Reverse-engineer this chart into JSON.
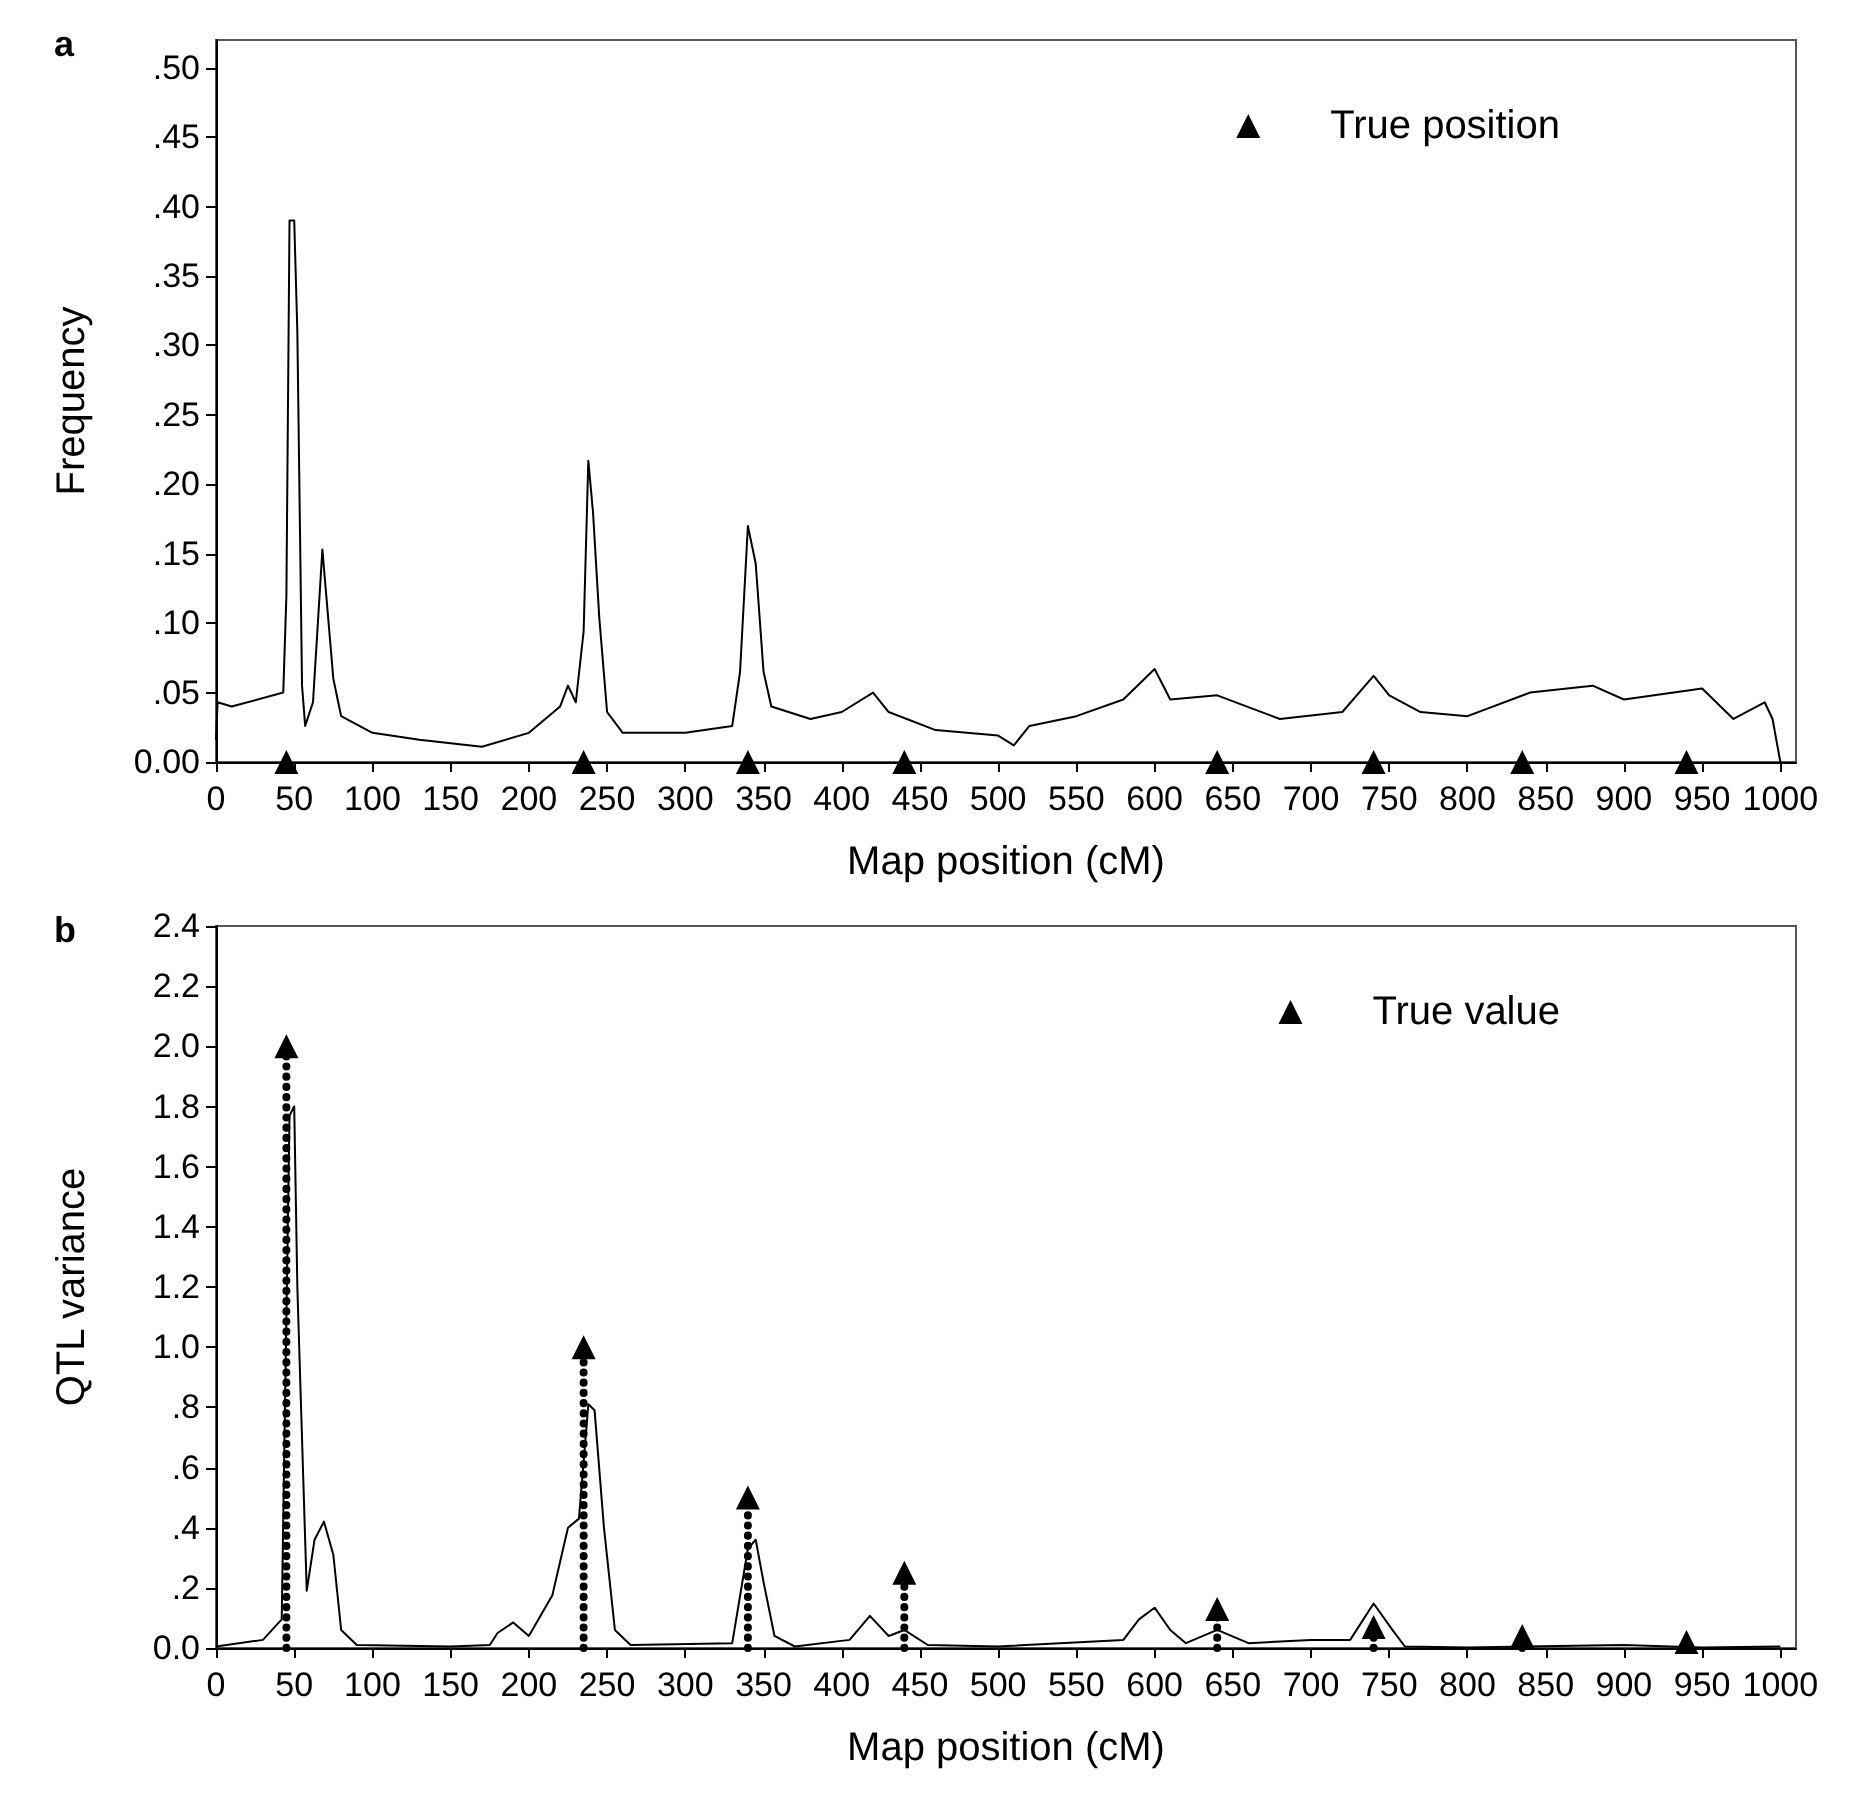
{
  "chart_data": [
    {
      "type": "line",
      "title": "a",
      "xlabel": "Map position (cM)",
      "ylabel": "Frequency",
      "legend": "top right",
      "xlim": [
        0,
        1010
      ],
      "xticks": [
        0,
        50,
        100,
        150,
        200,
        250,
        300,
        350,
        400,
        450,
        500,
        550,
        600,
        650,
        700,
        750,
        800,
        850,
        900,
        950,
        1000
      ],
      "ylim": [
        0,
        0.52
      ],
      "yticks": [
        {
          "value": 0,
          "label": "0.00"
        },
        {
          "value": 0.05,
          "label": ".05"
        },
        {
          "value": 0.1,
          "label": ".10"
        },
        {
          "value": 0.15,
          "label": ".15"
        },
        {
          "value": 0.2,
          "label": ".20"
        },
        {
          "value": 0.25,
          "label": ".25"
        },
        {
          "value": 0.3,
          "label": ".30"
        },
        {
          "value": 0.35,
          "label": ".35"
        },
        {
          "value": 0.4,
          "label": ".40"
        },
        {
          "value": 0.45,
          "label": ".45"
        },
        {
          "value": 0.5,
          "label": ".50"
        }
      ],
      "series": [
        {
          "color": "#000000",
          "marker": "none",
          "x": [
            0,
            1,
            10,
            43,
            45,
            47,
            50,
            52,
            55,
            57,
            62,
            68,
            75,
            80,
            100,
            130,
            170,
            200,
            220,
            225,
            230,
            235,
            238,
            241,
            245,
            250,
            260,
            300,
            330,
            335,
            340,
            345,
            350,
            355,
            380,
            400,
            420,
            430,
            460,
            500,
            510,
            520,
            550,
            580,
            600,
            610,
            640,
            680,
            720,
            740,
            750,
            770,
            800,
            840,
            880,
            900,
            950,
            970,
            990,
            995,
            1000
          ],
          "values": [
            0.016,
            0.043,
            0.04,
            0.05,
            0.12,
            0.39,
            0.39,
            0.31,
            0.055,
            0.026,
            0.043,
            0.153,
            0.06,
            0.033,
            0.021,
            0.016,
            0.011,
            0.021,
            0.04,
            0.055,
            0.043,
            0.094,
            0.217,
            0.18,
            0.104,
            0.036,
            0.021,
            0.021,
            0.026,
            0.065,
            0.17,
            0.143,
            0.065,
            0.04,
            0.031,
            0.036,
            0.05,
            0.036,
            0.023,
            0.019,
            0.012,
            0.026,
            0.033,
            0.045,
            0.067,
            0.045,
            0.048,
            0.031,
            0.036,
            0.062,
            0.048,
            0.036,
            0.033,
            0.05,
            0.055,
            0.045,
            0.053,
            0.031,
            0.043,
            0.031,
            0
          ]
        },
        {
          "type": "scatter",
          "name": "True position",
          "color": "#000000",
          "marker": "triangle",
          "x": [
            45,
            235,
            340,
            440,
            640,
            740,
            835,
            940
          ],
          "values": [
            0,
            0,
            0,
            0,
            0,
            0,
            0,
            0
          ]
        }
      ]
    },
    {
      "type": "line",
      "title": "b",
      "xlabel": "Map position (cM)",
      "ylabel": "QTL variance",
      "legend": "top right",
      "xlim": [
        0,
        1010
      ],
      "xticks": [
        0,
        50,
        100,
        150,
        200,
        250,
        300,
        350,
        400,
        450,
        500,
        550,
        600,
        650,
        700,
        750,
        800,
        850,
        900,
        950,
        1000
      ],
      "ylim": [
        0,
        2.4
      ],
      "yticks": [
        {
          "value": 0,
          "label": "0.0"
        },
        {
          "value": 0.2,
          "label": ".2"
        },
        {
          "value": 0.4,
          "label": ".4"
        },
        {
          "value": 0.6,
          "label": ".6"
        },
        {
          "value": 0.8,
          "label": ".8"
        },
        {
          "value": 1,
          "label": "1.0"
        },
        1.2,
        1.4,
        1.6,
        1.8,
        {
          "value": 2,
          "label": "2.0"
        },
        2.2,
        2.4
      ],
      "series": [
        {
          "color": "#000000",
          "marker": "none",
          "x": [
            0,
            30,
            42,
            47,
            50,
            52,
            58,
            63,
            69,
            75,
            80,
            90,
            150,
            175,
            180,
            190,
            200,
            215,
            225,
            232,
            238,
            242,
            248,
            255,
            265,
            330,
            340,
            345,
            350,
            357,
            370,
            405,
            418,
            430,
            440,
            455,
            500,
            580,
            590,
            600,
            610,
            620,
            640,
            660,
            700,
            725,
            740,
            752,
            760,
            800,
            900,
            950,
            1000
          ],
          "values": [
            0.005,
            0.027,
            0.095,
            1.77,
            1.8,
            1.2,
            0.19,
            0.36,
            0.42,
            0.31,
            0.06,
            0.01,
            0.005,
            0.01,
            0.05,
            0.085,
            0.04,
            0.175,
            0.4,
            0.43,
            0.81,
            0.79,
            0.4,
            0.06,
            0.01,
            0.016,
            0.33,
            0.36,
            0.22,
            0.04,
            0.005,
            0.027,
            0.107,
            0.04,
            0.06,
            0.01,
            0.005,
            0.027,
            0.095,
            0.134,
            0.06,
            0.016,
            0.06,
            0.016,
            0.027,
            0.027,
            0.148,
            0.06,
            0.005,
            0.002,
            0.01,
            0.002,
            0.005
          ]
        },
        {
          "type": "lollipop",
          "name": "True value",
          "color": "#000000",
          "marker": "triangle",
          "line_style": "dotted",
          "x": [
            45,
            235,
            340,
            440,
            640,
            740,
            835,
            940
          ],
          "values": [
            2,
            1,
            0.5,
            0.25,
            0.13,
            0.07,
            0.04,
            0.02
          ]
        }
      ]
    }
  ]
}
